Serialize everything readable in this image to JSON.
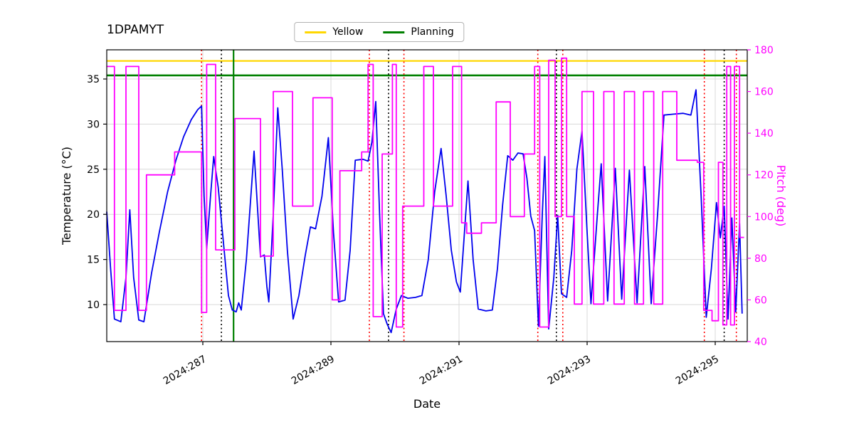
{
  "title": "1DPAMYT",
  "legend": {
    "items": [
      {
        "label": "Yellow",
        "color": "#FFD700"
      },
      {
        "label": "Planning",
        "color": "#008000"
      }
    ]
  },
  "axis_labels": {
    "x": "Date",
    "y_left": "Temperature (°C)",
    "y_right": "Pitch (deg)"
  },
  "chart_data": {
    "type": "line",
    "title": "1DPAMYT",
    "xlabel": "Date",
    "ylabel_left": "Temperature (°C)",
    "ylabel_right": "Pitch (deg)",
    "grid": true,
    "legend_position": "upper center outside",
    "xlim": [
      285.5,
      295.5
    ],
    "ylim_left": [
      5.9,
      38.23
    ],
    "ylim_right": [
      40,
      180
    ],
    "x_ticks": [
      {
        "value": 287,
        "label": "2024:287"
      },
      {
        "value": 289,
        "label": "2024:289"
      },
      {
        "value": 291,
        "label": "2024:291"
      },
      {
        "value": 293,
        "label": "2024:293"
      },
      {
        "value": 295,
        "label": "2024:295"
      }
    ],
    "y_ticks_left": [
      10,
      15,
      20,
      25,
      30,
      35
    ],
    "y_ticks_right": [
      40,
      60,
      80,
      100,
      120,
      140,
      160,
      180
    ],
    "hlines": [
      {
        "label": "Yellow",
        "y": 37.0,
        "color": "#FFD700",
        "width": 2.2
      },
      {
        "label": "Planning",
        "y": 35.4,
        "color": "#008000",
        "width": 2.6
      }
    ],
    "vlines": [
      {
        "x": 286.98,
        "color": "#FF0000",
        "style": "dotted"
      },
      {
        "x": 287.29,
        "color": "#000000",
        "style": "dotted"
      },
      {
        "x": 287.48,
        "color": "#008000",
        "style": "solid"
      },
      {
        "x": 289.6,
        "color": "#FF0000",
        "style": "dotted"
      },
      {
        "x": 289.9,
        "color": "#000000",
        "style": "dotted"
      },
      {
        "x": 290.14,
        "color": "#FF0000",
        "style": "dotted"
      },
      {
        "x": 292.23,
        "color": "#FF0000",
        "style": "dotted"
      },
      {
        "x": 292.52,
        "color": "#000000",
        "style": "dotted"
      },
      {
        "x": 292.62,
        "color": "#FF0000",
        "style": "dotted"
      },
      {
        "x": 294.83,
        "color": "#FF0000",
        "style": "dotted"
      },
      {
        "x": 295.14,
        "color": "#000000",
        "style": "dotted"
      },
      {
        "x": 295.33,
        "color": "#FF0000",
        "style": "dotted"
      }
    ],
    "series": [
      {
        "name": "Temperature",
        "axis": "left",
        "color": "#0000EE",
        "style": "line",
        "points": [
          [
            285.5,
            20.3
          ],
          [
            285.56,
            14.0
          ],
          [
            285.62,
            8.4
          ],
          [
            285.72,
            8.1
          ],
          [
            285.8,
            13.0
          ],
          [
            285.86,
            20.5
          ],
          [
            285.92,
            13.0
          ],
          [
            286.0,
            8.3
          ],
          [
            286.08,
            8.1
          ],
          [
            286.2,
            13.5
          ],
          [
            286.32,
            18.0
          ],
          [
            286.45,
            22.5
          ],
          [
            286.58,
            26.0
          ],
          [
            286.7,
            28.6
          ],
          [
            286.82,
            30.5
          ],
          [
            286.92,
            31.6
          ],
          [
            286.98,
            32.0
          ],
          [
            287.02,
            22.0
          ],
          [
            287.06,
            16.2
          ],
          [
            287.12,
            22.0
          ],
          [
            287.17,
            26.4
          ],
          [
            287.24,
            23.0
          ],
          [
            287.32,
            17.0
          ],
          [
            287.4,
            11.0
          ],
          [
            287.46,
            9.4
          ],
          [
            287.52,
            9.2
          ],
          [
            287.56,
            10.2
          ],
          [
            287.6,
            9.4
          ],
          [
            287.68,
            15.0
          ],
          [
            287.75,
            22.0
          ],
          [
            287.8,
            27.0
          ],
          [
            287.86,
            20.0
          ],
          [
            287.9,
            15.3
          ],
          [
            287.96,
            15.5
          ],
          [
            288.0,
            12.0
          ],
          [
            288.03,
            10.3
          ],
          [
            288.1,
            20.0
          ],
          [
            288.17,
            31.8
          ],
          [
            288.24,
            25.0
          ],
          [
            288.32,
            16.0
          ],
          [
            288.41,
            8.4
          ],
          [
            288.5,
            11.0
          ],
          [
            288.6,
            15.5
          ],
          [
            288.68,
            18.6
          ],
          [
            288.76,
            18.4
          ],
          [
            288.86,
            22.0
          ],
          [
            288.96,
            28.5
          ],
          [
            289.04,
            18.0
          ],
          [
            289.12,
            10.3
          ],
          [
            289.22,
            10.5
          ],
          [
            289.3,
            16.0
          ],
          [
            289.38,
            26.0
          ],
          [
            289.5,
            26.1
          ],
          [
            289.58,
            25.9
          ],
          [
            289.64,
            28.0
          ],
          [
            289.7,
            32.5
          ],
          [
            289.76,
            20.0
          ],
          [
            289.82,
            9.0
          ],
          [
            289.88,
            7.8
          ],
          [
            289.94,
            6.9
          ],
          [
            290.02,
            9.5
          ],
          [
            290.1,
            11.0
          ],
          [
            290.2,
            10.7
          ],
          [
            290.32,
            10.8
          ],
          [
            290.42,
            11.0
          ],
          [
            290.52,
            15.0
          ],
          [
            290.62,
            22.5
          ],
          [
            290.72,
            27.3
          ],
          [
            290.8,
            22.0
          ],
          [
            290.88,
            16.0
          ],
          [
            290.96,
            12.5
          ],
          [
            291.02,
            11.4
          ],
          [
            291.08,
            17.5
          ],
          [
            291.14,
            23.7
          ],
          [
            291.22,
            15.0
          ],
          [
            291.3,
            9.5
          ],
          [
            291.42,
            9.3
          ],
          [
            291.52,
            9.4
          ],
          [
            291.6,
            14.0
          ],
          [
            291.68,
            21.0
          ],
          [
            291.76,
            26.5
          ],
          [
            291.84,
            26.0
          ],
          [
            291.92,
            26.8
          ],
          [
            292.0,
            26.7
          ],
          [
            292.06,
            24.0
          ],
          [
            292.12,
            19.8
          ],
          [
            292.18,
            18.2
          ],
          [
            292.24,
            7.6
          ],
          [
            292.3,
            20.0
          ],
          [
            292.34,
            26.4
          ],
          [
            292.4,
            7.3
          ],
          [
            292.48,
            13.0
          ],
          [
            292.54,
            19.9
          ],
          [
            292.6,
            11.2
          ],
          [
            292.68,
            10.8
          ],
          [
            292.76,
            16.0
          ],
          [
            292.84,
            25.0
          ],
          [
            292.92,
            29.2
          ],
          [
            293.0,
            18.0
          ],
          [
            293.06,
            10.1
          ],
          [
            293.16,
            20.0
          ],
          [
            293.22,
            25.6
          ],
          [
            293.32,
            10.4
          ],
          [
            293.44,
            25.1
          ],
          [
            293.54,
            10.6
          ],
          [
            293.66,
            24.9
          ],
          [
            293.78,
            10.2
          ],
          [
            293.9,
            25.3
          ],
          [
            294.0,
            10.1
          ],
          [
            294.1,
            20.0
          ],
          [
            294.2,
            31.0
          ],
          [
            294.35,
            31.1
          ],
          [
            294.5,
            31.2
          ],
          [
            294.62,
            31.0
          ],
          [
            294.7,
            33.8
          ],
          [
            294.78,
            22.0
          ],
          [
            294.86,
            8.6
          ],
          [
            294.94,
            14.0
          ],
          [
            295.02,
            21.3
          ],
          [
            295.08,
            17.4
          ],
          [
            295.14,
            20.9
          ],
          [
            295.2,
            8.4
          ],
          [
            295.26,
            19.6
          ],
          [
            295.32,
            9.2
          ],
          [
            295.38,
            19.0
          ],
          [
            295.42,
            9.0
          ]
        ]
      },
      {
        "name": "Pitch",
        "axis": "right",
        "color": "#FF00FF",
        "style": "step",
        "points": [
          [
            285.5,
            172
          ],
          [
            285.62,
            55
          ],
          [
            285.8,
            172
          ],
          [
            286.0,
            55
          ],
          [
            286.12,
            120
          ],
          [
            286.56,
            131
          ],
          [
            286.98,
            54
          ],
          [
            287.06,
            173
          ],
          [
            287.2,
            84
          ],
          [
            287.5,
            147
          ],
          [
            287.9,
            81
          ],
          [
            288.1,
            160
          ],
          [
            288.4,
            105
          ],
          [
            288.72,
            157
          ],
          [
            289.02,
            60
          ],
          [
            289.14,
            122
          ],
          [
            289.48,
            131
          ],
          [
            289.58,
            173
          ],
          [
            289.66,
            52
          ],
          [
            289.8,
            130
          ],
          [
            289.96,
            173
          ],
          [
            290.02,
            47
          ],
          [
            290.12,
            105
          ],
          [
            290.45,
            172
          ],
          [
            290.6,
            105
          ],
          [
            290.9,
            172
          ],
          [
            291.04,
            97
          ],
          [
            291.12,
            92
          ],
          [
            291.35,
            97
          ],
          [
            291.58,
            155
          ],
          [
            291.8,
            100
          ],
          [
            292.02,
            130
          ],
          [
            292.18,
            172
          ],
          [
            292.26,
            47
          ],
          [
            292.4,
            175
          ],
          [
            292.5,
            100
          ],
          [
            292.6,
            176
          ],
          [
            292.68,
            100
          ],
          [
            292.8,
            58
          ],
          [
            292.92,
            160
          ],
          [
            293.1,
            58
          ],
          [
            293.26,
            160
          ],
          [
            293.42,
            58
          ],
          [
            293.58,
            160
          ],
          [
            293.74,
            58
          ],
          [
            293.88,
            160
          ],
          [
            294.04,
            58
          ],
          [
            294.18,
            160
          ],
          [
            294.4,
            127
          ],
          [
            294.72,
            126
          ],
          [
            294.82,
            55
          ],
          [
            294.95,
            50
          ],
          [
            295.05,
            126
          ],
          [
            295.12,
            48
          ],
          [
            295.18,
            172
          ],
          [
            295.24,
            48
          ],
          [
            295.3,
            172
          ],
          [
            295.38,
            90
          ],
          [
            295.45,
            90
          ]
        ]
      }
    ]
  },
  "colors": {
    "temperature_line": "#0000EE",
    "pitch_line": "#FF00FF",
    "yellow_limit": "#FFD700",
    "planning_limit": "#008000",
    "grid": "#d8d8d8",
    "red_event_line": "#FF0000",
    "black_event_line": "#000000",
    "green_event_line": "#008000"
  }
}
